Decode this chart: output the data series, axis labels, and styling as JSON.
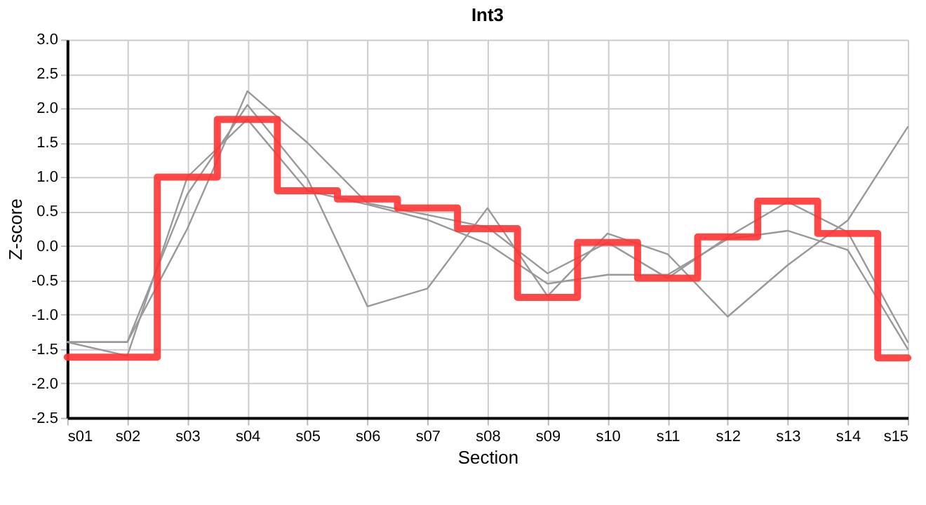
{
  "chart_data": {
    "type": "line",
    "title": "Int3",
    "xlabel": "Section",
    "ylabel": "Z-score",
    "categories": [
      "s01",
      "s02",
      "s03",
      "s04",
      "s05",
      "s06",
      "s07",
      "s08",
      "s09",
      "s10",
      "s11",
      "s12",
      "s13",
      "s14",
      "s15"
    ],
    "series": [
      {
        "color": "#999999",
        "values": [
          -1.4,
          -1.4,
          0.75,
          2.05,
          0.98,
          -0.88,
          -0.62,
          0.55,
          -0.73,
          0.18,
          -0.12,
          -1.03,
          -0.28,
          0.37,
          1.73
        ]
      },
      {
        "color": "#999999",
        "values": [
          -1.4,
          -1.4,
          0.25,
          2.25,
          1.5,
          0.62,
          0.45,
          0.27,
          -0.4,
          0.05,
          -0.47,
          0.13,
          0.64,
          0.2,
          -1.4
        ]
      },
      {
        "color": "#999999",
        "values": [
          -1.4,
          -1.6,
          1.0,
          1.84,
          0.8,
          0.6,
          0.38,
          0.03,
          -0.55,
          -0.42,
          -0.42,
          0.1,
          0.22,
          -0.06,
          -1.5
        ]
      },
      {
        "type": "step",
        "color": "#ff3333",
        "values": [
          -1.62,
          -1.62,
          1.0,
          1.84,
          0.8,
          0.68,
          0.55,
          0.25,
          -0.75,
          0.05,
          -0.47,
          0.13,
          0.65,
          0.18,
          -1.63
        ]
      }
    ],
    "ylim": [
      -2.5,
      3.0
    ],
    "yticks": [
      {
        "value": -2.5,
        "label": "-2.5"
      },
      {
        "value": -2,
        "label": "-2.0"
      },
      {
        "value": -1.5,
        "label": "-1.5"
      },
      {
        "value": -1,
        "label": "-1.0"
      },
      {
        "value": -0.5,
        "label": "-0.5"
      },
      {
        "value": 0,
        "label": "0.0"
      },
      {
        "value": 0.5,
        "label": "0.5"
      },
      {
        "value": 1,
        "label": "1.0"
      },
      {
        "value": 1.5,
        "label": "1.5"
      },
      {
        "value": 2,
        "label": "2.0"
      },
      {
        "value": 2.5,
        "label": "2.5"
      },
      {
        "value": 3,
        "label": "3.0"
      }
    ],
    "grid": true
  }
}
